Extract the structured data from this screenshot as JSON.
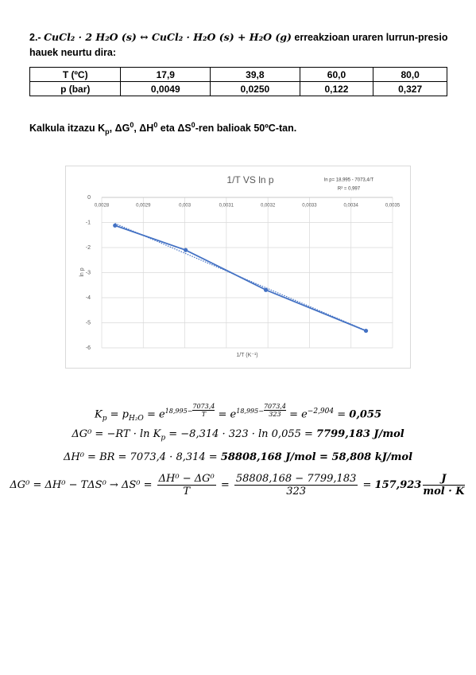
{
  "problem": {
    "number": "2.-",
    "reaction": "CuCl₂ · 2 H₂O (s) ↔ CuCl₂ · H₂O (s) + H₂O (g)",
    "text": "erreakzioan uraren lurrun-presio hauek neurtu dira:"
  },
  "table": {
    "rows": [
      [
        "T (ºC)",
        "17,9",
        "39,8",
        "60,0",
        "80,0"
      ],
      [
        "p (bar)",
        "0,0049",
        "0,0250",
        "0,122",
        "0,327"
      ]
    ]
  },
  "question": {
    "a": "Kalkula itzazu K",
    "a_sub": "p",
    "b": ", ΔG",
    "b_sup": "0",
    "c": ", ΔH",
    "c_sup": "0",
    "d": " eta ΔS",
    "d_sup": "0",
    "e": "-ren balioak 50ºC-tan."
  },
  "chart_data": {
    "type": "line",
    "title": "1/T VS ln p",
    "x_label": "1/T (K⁻¹)",
    "y_label": "ln p",
    "x": [
      0.002832,
      0.003002,
      0.003195,
      0.003436
    ],
    "values": [
      -1.12,
      -2.1,
      -3.69,
      -5.32
    ],
    "color": "#4472c4",
    "trendline": {
      "label": "ln p= 18,995 - 7073,4/T",
      "r2_label": "R² = 0,997",
      "intercept": 18.995,
      "slope": -7073.4
    },
    "xlim": [
      0.0028,
      0.0035
    ],
    "ylim": [
      -6,
      0
    ],
    "xticks": [
      {
        "value": 0.0028,
        "label": "0,0028"
      },
      {
        "value": 0.0029,
        "label": "0,0029"
      },
      {
        "value": 0.003,
        "label": "0,003"
      },
      {
        "value": 0.0031,
        "label": "0,0031"
      },
      {
        "value": 0.0032,
        "label": "0,0032"
      },
      {
        "value": 0.0033,
        "label": "0,0033"
      },
      {
        "value": 0.0034,
        "label": "0,0034"
      },
      {
        "value": 0.0035,
        "label": "0,0035"
      }
    ],
    "yticks": [
      0,
      -1,
      -2,
      -3,
      -4,
      -5,
      -6
    ],
    "grid": true
  },
  "equations": [
    {
      "a": "K",
      "a_sub": "p",
      "b": " = p",
      "b_sub": "H₂O",
      "c": " = e",
      "c_sup": "18,995−",
      "c_num": "7073,4",
      "c_den": "T",
      "d": " = e",
      "d_sup": "18,995−",
      "d_num": "7073,4",
      "d_den": "323",
      "e": " = e",
      "e_sup": "−2,904",
      "f": " = ",
      "result": "0,055"
    },
    {
      "a": "ΔG⁰ = −RT · ln K",
      "a_sub": "p",
      "b": " = −8,314 · 323 · ln 0,055 = ",
      "result": "7799,183 J/mol"
    },
    {
      "a": "ΔH⁰ = BR = 7073,4 · 8,314 = ",
      "result": "58808,168 J/mol = 58,808 kJ/mol"
    },
    {
      "a": "ΔG⁰ = ΔH⁰ − TΔS⁰ → ΔS⁰ = ",
      "f1_num": "ΔH⁰ − ΔG⁰",
      "f1_den": "T",
      "b": " = ",
      "f2_num": "58808,168 − 7799,183",
      "f2_den": "323",
      "c": " = ",
      "result": "157,923",
      "f3_num": "J",
      "f3_den": "mol · K"
    }
  ]
}
